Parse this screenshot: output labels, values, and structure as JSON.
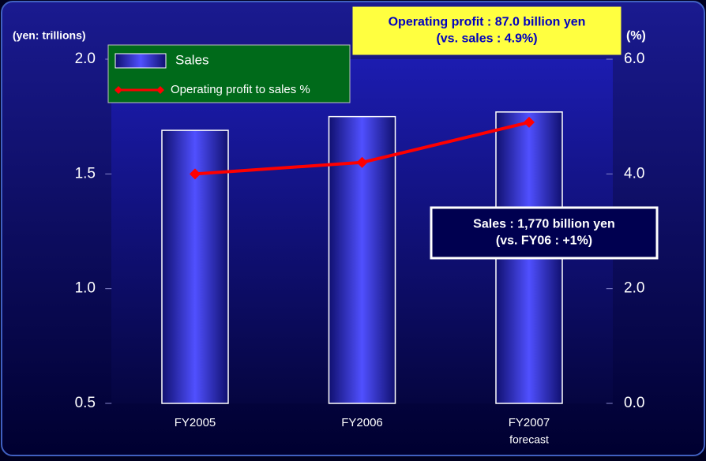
{
  "chart_data": {
    "type": "bar_line",
    "categories": [
      "FY2005",
      "FY2006",
      "FY2007"
    ],
    "category_note": "forecast",
    "y_label": "(yen: trillions)",
    "y2_label": "(%)",
    "ylim": [
      0.5,
      2.0
    ],
    "yticks": [
      {
        "value": 0.5,
        "label": "0.5"
      },
      {
        "value": 1,
        "label": "1.0"
      },
      {
        "value": 1.5,
        "label": "1.5"
      },
      {
        "value": 2,
        "label": "2.0"
      }
    ],
    "y2lim": [
      0,
      6
    ],
    "y2ticks": [
      {
        "value": 0,
        "label": "0.0"
      },
      {
        "value": 2,
        "label": "2.0"
      },
      {
        "value": 4,
        "label": "4.0"
      },
      {
        "value": 6,
        "label": "6.0"
      }
    ],
    "series": [
      {
        "name": "Sales",
        "kind": "bar",
        "color": "#3a3ae0",
        "values": [
          1.69,
          1.75,
          1.77
        ]
      },
      {
        "name": "Operating profit to sales %",
        "kind": "line",
        "axis": "y2",
        "color": "#ff0000",
        "values": [
          4.0,
          4.2,
          4.9
        ]
      }
    ],
    "annotations": [
      {
        "lines": [
          "Operating profit : 87.0 billion yen",
          "(vs. sales : 4.9%)"
        ]
      },
      {
        "lines": [
          "Sales : 1,770 billion yen",
          "(vs. FY06 : +1%)"
        ]
      }
    ]
  }
}
